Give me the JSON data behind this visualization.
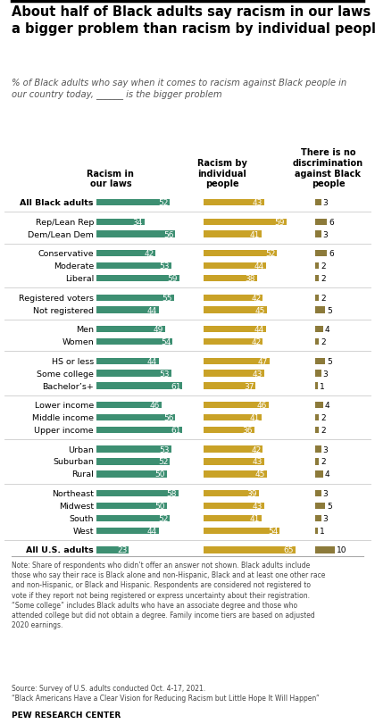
{
  "title": "About half of Black adults say racism in our laws is\na bigger problem than racism by individual people",
  "subtitle": "% of Black adults who say when it comes to racism against Black people in\nour country today, ______ is the bigger problem",
  "col_headers": [
    "Racism in\nour laws",
    "Racism by\nindividual\npeople",
    "There is no\ndiscrimination\nagainst Black\npeople"
  ],
  "categories": [
    "All Black adults",
    "Rep/Lean Rep",
    "Dem/Lean Dem",
    "Conservative",
    "Moderate",
    "Liberal",
    "Registered voters",
    "Not registered",
    "Men",
    "Women",
    "HS or less",
    "Some college",
    "Bachelor’s+",
    "Lower income",
    "Middle income",
    "Upper income",
    "Urban",
    "Suburban",
    "Rural",
    "Northeast",
    "Midwest",
    "South",
    "West",
    "All U.S. adults"
  ],
  "group_starts": [
    0,
    1,
    3,
    6,
    8,
    10,
    13,
    16,
    19,
    23
  ],
  "col1": [
    52,
    34,
    56,
    42,
    53,
    59,
    55,
    44,
    49,
    54,
    44,
    53,
    61,
    46,
    56,
    61,
    53,
    52,
    50,
    58,
    50,
    52,
    44,
    23
  ],
  "col2": [
    43,
    59,
    41,
    52,
    44,
    38,
    42,
    45,
    44,
    42,
    47,
    43,
    37,
    46,
    41,
    36,
    42,
    43,
    45,
    39,
    43,
    41,
    54,
    65
  ],
  "col3": [
    3,
    6,
    3,
    6,
    2,
    2,
    2,
    5,
    4,
    2,
    5,
    3,
    1,
    4,
    2,
    2,
    3,
    2,
    4,
    3,
    5,
    3,
    1,
    10
  ],
  "color_green": "#3d8f72",
  "color_yellow": "#c9a227",
  "color_brown": "#8c7a3a",
  "note": "Note: Share of respondents who didn’t offer an answer not shown. Black adults include\nthose who say their race is Black alone and non-Hispanic, Black and at least one other race\nand non-Hispanic, or Black and Hispanic. Respondents are considered not registered to\nvote if they report not being registered or express uncertainty about their registration.\n“Some college” includes Black adults who have an associate degree and those who\nattended college but did not obtain a degree. Family income tiers are based on adjusted\n2020 earnings.",
  "source": "Source: Survey of U.S. adults conducted Oct. 4-17, 2021.\n“Black Americans Have a Clear Vision for Reducing Racism but Little Hope It Will Happen”",
  "pew": "PEW RESEARCH CENTER"
}
